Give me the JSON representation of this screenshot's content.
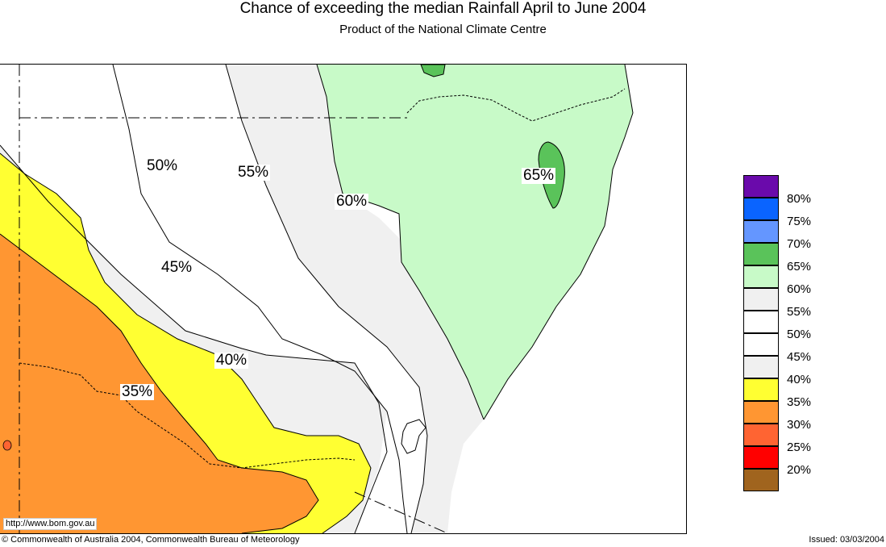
{
  "header": {
    "title": "Chance of exceeding the median Rainfall April to June 2004",
    "subtitle": "Product of the National Climate Centre"
  },
  "map": {
    "url_label": "http://www.bom.gov.au",
    "contour_labels": [
      "50%",
      "55%",
      "60%",
      "65%",
      "45%",
      "40%",
      "35%"
    ]
  },
  "legend": {
    "items": [
      {
        "color": "#6a0aab"
      },
      {
        "label": "80%",
        "color": "#0a64ff"
      },
      {
        "label": "75%",
        "color": "#6496ff"
      },
      {
        "label": "70%",
        "color": "#5ac35a"
      },
      {
        "label": "65%",
        "color": "#c8fac8"
      },
      {
        "label": "60%",
        "color": "#f0f0f0"
      },
      {
        "label": "55%",
        "color": "#ffffff"
      },
      {
        "label": "50%",
        "color": "#ffffff"
      },
      {
        "label": "45%",
        "color": "#f0f0f0"
      },
      {
        "label": "40%",
        "color": "#ffff32"
      },
      {
        "label": "35%",
        "color": "#ff9632"
      },
      {
        "label": "30%",
        "color": "#ff6432"
      },
      {
        "label": "25%",
        "color": "#ff0000"
      },
      {
        "label": "20%",
        "color": "#a0641e"
      }
    ]
  },
  "colors": {
    "orange": "#ff9632",
    "yellow": "#ffff32",
    "lightgrey": "#f0f0f0",
    "lightgreen": "#c8fac8",
    "green": "#5ac35a"
  },
  "footer": {
    "copyright": "© Commonwealth of Australia 2004, Commonwealth Bureau of Meteorology",
    "issued": "Issued: 03/03/2004"
  }
}
